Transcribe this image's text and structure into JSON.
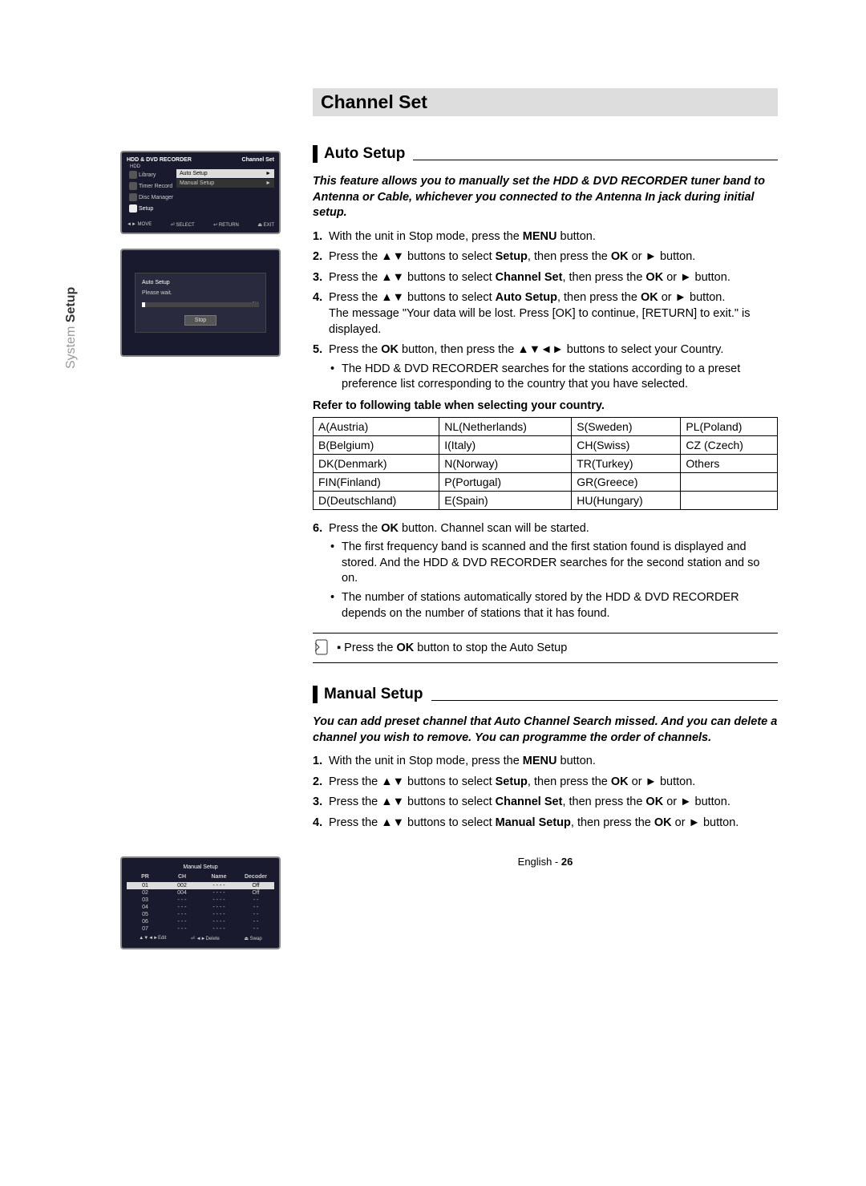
{
  "side_tab": {
    "light": "System ",
    "dark": "Setup"
  },
  "h1": "Channel Set",
  "auto": {
    "heading": "Auto Setup",
    "intro": "This feature allows you to manually set the HDD & DVD RECORDER tuner band to Antenna or Cable, whichever you connected to the Antenna In jack during initial setup.",
    "steps": {
      "s1_a": "With the unit in Stop mode, press the ",
      "s1_b": "MENU",
      "s1_c": " button.",
      "s2_a": "Press the ▲▼ buttons to select ",
      "s2_b": "Setup",
      "s2_c": ", then press the ",
      "s2_d": "OK",
      "s2_e": " or ► button.",
      "s3_a": "Press the ▲▼ buttons to select ",
      "s3_b": "Channel Set",
      "s3_c": ", then press the ",
      "s3_d": "OK",
      "s3_e": " or ► button.",
      "s4_a": "Press the ▲▼ buttons to select ",
      "s4_b": "Auto Setup",
      "s4_c": ", then press the ",
      "s4_d": "OK",
      "s4_e": " or ► button.",
      "s4_msg": "The message \"Your data will be lost. Press [OK] to continue, [RETURN] to exit.\" is displayed.",
      "s5_a": "Press the ",
      "s5_b": "OK",
      "s5_c": " button, then press the ▲▼◄► buttons to select your Country.",
      "s5_bul": "The HDD & DVD RECORDER searches for the stations according to a preset preference list corresponding to the country that you have selected.",
      "caption": "Refer to following table when selecting your country.",
      "s6_a": "Press the ",
      "s6_b": "OK",
      "s6_c": " button. Channel scan will be started.",
      "s6_bul1": "The first frequency band is scanned and the first station found is displayed and stored. And the HDD & DVD RECORDER searches for the second station and so on.",
      "s6_bul2": "The number of stations automatically stored by the HDD & DVD RECORDER depends on the number of stations that it has found."
    },
    "note_a": "Press the ",
    "note_b": "OK",
    "note_c": " button to stop the Auto Setup",
    "table": [
      [
        "A(Austria)",
        "NL(Netherlands)",
        "S(Sweden)",
        "PL(Poland)"
      ],
      [
        "B(Belgium)",
        "I(Italy)",
        "CH(Swiss)",
        "CZ (Czech)"
      ],
      [
        "DK(Denmark)",
        "N(Norway)",
        "TR(Turkey)",
        "Others"
      ],
      [
        "FIN(Finland)",
        "P(Portugal)",
        "GR(Greece)",
        ""
      ],
      [
        "D(Deutschland)",
        "E(Spain)",
        "HU(Hungary)",
        ""
      ]
    ]
  },
  "manual": {
    "heading": "Manual Setup",
    "intro": "You can add preset channel that Auto Channel Search missed. And you can delete a channel you wish to remove. You can programme the order of channels.",
    "steps": {
      "s1_a": "With the unit in Stop mode, press the ",
      "s1_b": "MENU",
      "s1_c": " button.",
      "s2_a": "Press the ▲▼ buttons to select ",
      "s2_b": "Setup",
      "s2_c": ", then press the ",
      "s2_d": "OK",
      "s2_e": " or ► button.",
      "s3_a": "Press the ▲▼  buttons to select ",
      "s3_b": "Channel Set",
      "s3_c": ", then press the ",
      "s3_d": "OK",
      "s3_e": " or ► button.",
      "s4_a": "Press the ▲▼  buttons to select ",
      "s4_b": "Manual Setup",
      "s4_c": ", then press the ",
      "s4_d": "OK",
      "s4_e": " or ► button."
    }
  },
  "footer": {
    "lang": "English - ",
    "page": "26"
  },
  "scr1": {
    "title_l": "HDD & DVD RECORDER",
    "title_r": "Channel Set",
    "hdd": "HDD",
    "menu": [
      "Library",
      "Timer Record",
      "Disc Manager",
      "Setup"
    ],
    "items": [
      [
        "Auto Setup",
        "►"
      ],
      [
        "Manual Setup",
        "►"
      ]
    ],
    "foot": [
      "◄► MOVE",
      "⏎ SELECT",
      "↩ RETURN",
      "⏏ EXIT"
    ]
  },
  "scr2": {
    "title": "Auto Setup",
    "wait": "Please wait.",
    "pct": "3%",
    "stop": "Stop"
  },
  "scr3": {
    "title": "Manual Setup",
    "head": [
      "PR",
      "CH",
      "Name",
      "Decoder"
    ],
    "rows": [
      [
        "01",
        "002",
        "- - - -",
        "Off"
      ],
      [
        "02",
        "004",
        "- - - -",
        "Off"
      ],
      [
        "03",
        "- - -",
        "- - - -",
        "- -"
      ],
      [
        "04",
        "- - -",
        "- - - -",
        "- -"
      ],
      [
        "05",
        "- - -",
        "- - - -",
        "- -"
      ],
      [
        "06",
        "- - -",
        "- - - -",
        "- -"
      ],
      [
        "07",
        "- - -",
        "- - - -",
        "- -"
      ]
    ],
    "foot": [
      "▲▼◄►Edit",
      "⏎ ◄►Delete",
      "⏏ Swap"
    ]
  }
}
